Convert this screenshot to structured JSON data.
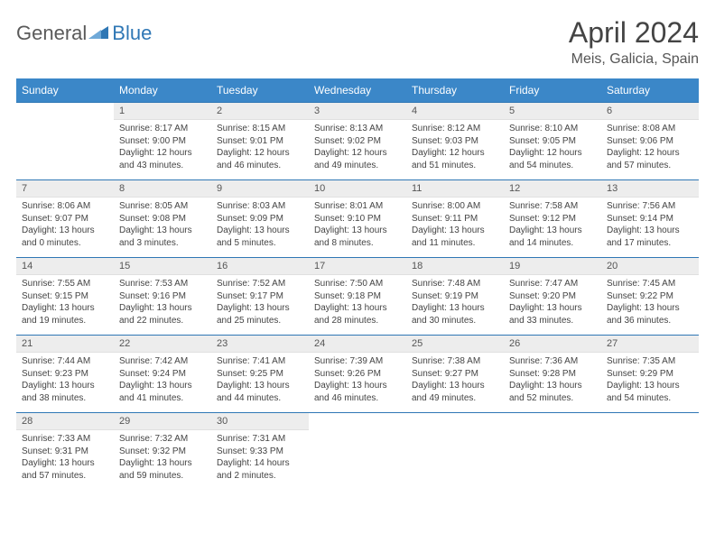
{
  "brand": {
    "part1": "General",
    "part2": "Blue"
  },
  "title": "April 2024",
  "location": "Meis, Galicia, Spain",
  "colors": {
    "header_bg": "#3b87c8",
    "brand_blue": "#2f77b5",
    "daynum_bg": "#ededed",
    "row_divider": "#2f77b5",
    "text": "#444444",
    "background": "#ffffff"
  },
  "weekdays": [
    "Sunday",
    "Monday",
    "Tuesday",
    "Wednesday",
    "Thursday",
    "Friday",
    "Saturday"
  ],
  "label_sunrise": "Sunrise: ",
  "label_sunset": "Sunset: ",
  "label_daylight_prefix": "Daylight: ",
  "weeks": [
    [
      null,
      {
        "n": "1",
        "sunrise": "8:17 AM",
        "sunset": "9:00 PM",
        "day_l1": "12 hours",
        "day_l2": "and 43 minutes."
      },
      {
        "n": "2",
        "sunrise": "8:15 AM",
        "sunset": "9:01 PM",
        "day_l1": "12 hours",
        "day_l2": "and 46 minutes."
      },
      {
        "n": "3",
        "sunrise": "8:13 AM",
        "sunset": "9:02 PM",
        "day_l1": "12 hours",
        "day_l2": "and 49 minutes."
      },
      {
        "n": "4",
        "sunrise": "8:12 AM",
        "sunset": "9:03 PM",
        "day_l1": "12 hours",
        "day_l2": "and 51 minutes."
      },
      {
        "n": "5",
        "sunrise": "8:10 AM",
        "sunset": "9:05 PM",
        "day_l1": "12 hours",
        "day_l2": "and 54 minutes."
      },
      {
        "n": "6",
        "sunrise": "8:08 AM",
        "sunset": "9:06 PM",
        "day_l1": "12 hours",
        "day_l2": "and 57 minutes."
      }
    ],
    [
      {
        "n": "7",
        "sunrise": "8:06 AM",
        "sunset": "9:07 PM",
        "day_l1": "13 hours",
        "day_l2": "and 0 minutes."
      },
      {
        "n": "8",
        "sunrise": "8:05 AM",
        "sunset": "9:08 PM",
        "day_l1": "13 hours",
        "day_l2": "and 3 minutes."
      },
      {
        "n": "9",
        "sunrise": "8:03 AM",
        "sunset": "9:09 PM",
        "day_l1": "13 hours",
        "day_l2": "and 5 minutes."
      },
      {
        "n": "10",
        "sunrise": "8:01 AM",
        "sunset": "9:10 PM",
        "day_l1": "13 hours",
        "day_l2": "and 8 minutes."
      },
      {
        "n": "11",
        "sunrise": "8:00 AM",
        "sunset": "9:11 PM",
        "day_l1": "13 hours",
        "day_l2": "and 11 minutes."
      },
      {
        "n": "12",
        "sunrise": "7:58 AM",
        "sunset": "9:12 PM",
        "day_l1": "13 hours",
        "day_l2": "and 14 minutes."
      },
      {
        "n": "13",
        "sunrise": "7:56 AM",
        "sunset": "9:14 PM",
        "day_l1": "13 hours",
        "day_l2": "and 17 minutes."
      }
    ],
    [
      {
        "n": "14",
        "sunrise": "7:55 AM",
        "sunset": "9:15 PM",
        "day_l1": "13 hours",
        "day_l2": "and 19 minutes."
      },
      {
        "n": "15",
        "sunrise": "7:53 AM",
        "sunset": "9:16 PM",
        "day_l1": "13 hours",
        "day_l2": "and 22 minutes."
      },
      {
        "n": "16",
        "sunrise": "7:52 AM",
        "sunset": "9:17 PM",
        "day_l1": "13 hours",
        "day_l2": "and 25 minutes."
      },
      {
        "n": "17",
        "sunrise": "7:50 AM",
        "sunset": "9:18 PM",
        "day_l1": "13 hours",
        "day_l2": "and 28 minutes."
      },
      {
        "n": "18",
        "sunrise": "7:48 AM",
        "sunset": "9:19 PM",
        "day_l1": "13 hours",
        "day_l2": "and 30 minutes."
      },
      {
        "n": "19",
        "sunrise": "7:47 AM",
        "sunset": "9:20 PM",
        "day_l1": "13 hours",
        "day_l2": "and 33 minutes."
      },
      {
        "n": "20",
        "sunrise": "7:45 AM",
        "sunset": "9:22 PM",
        "day_l1": "13 hours",
        "day_l2": "and 36 minutes."
      }
    ],
    [
      {
        "n": "21",
        "sunrise": "7:44 AM",
        "sunset": "9:23 PM",
        "day_l1": "13 hours",
        "day_l2": "and 38 minutes."
      },
      {
        "n": "22",
        "sunrise": "7:42 AM",
        "sunset": "9:24 PM",
        "day_l1": "13 hours",
        "day_l2": "and 41 minutes."
      },
      {
        "n": "23",
        "sunrise": "7:41 AM",
        "sunset": "9:25 PM",
        "day_l1": "13 hours",
        "day_l2": "and 44 minutes."
      },
      {
        "n": "24",
        "sunrise": "7:39 AM",
        "sunset": "9:26 PM",
        "day_l1": "13 hours",
        "day_l2": "and 46 minutes."
      },
      {
        "n": "25",
        "sunrise": "7:38 AM",
        "sunset": "9:27 PM",
        "day_l1": "13 hours",
        "day_l2": "and 49 minutes."
      },
      {
        "n": "26",
        "sunrise": "7:36 AM",
        "sunset": "9:28 PM",
        "day_l1": "13 hours",
        "day_l2": "and 52 minutes."
      },
      {
        "n": "27",
        "sunrise": "7:35 AM",
        "sunset": "9:29 PM",
        "day_l1": "13 hours",
        "day_l2": "and 54 minutes."
      }
    ],
    [
      {
        "n": "28",
        "sunrise": "7:33 AM",
        "sunset": "9:31 PM",
        "day_l1": "13 hours",
        "day_l2": "and 57 minutes."
      },
      {
        "n": "29",
        "sunrise": "7:32 AM",
        "sunset": "9:32 PM",
        "day_l1": "13 hours",
        "day_l2": "and 59 minutes."
      },
      {
        "n": "30",
        "sunrise": "7:31 AM",
        "sunset": "9:33 PM",
        "day_l1": "14 hours",
        "day_l2": "and 2 minutes."
      },
      null,
      null,
      null,
      null
    ]
  ]
}
